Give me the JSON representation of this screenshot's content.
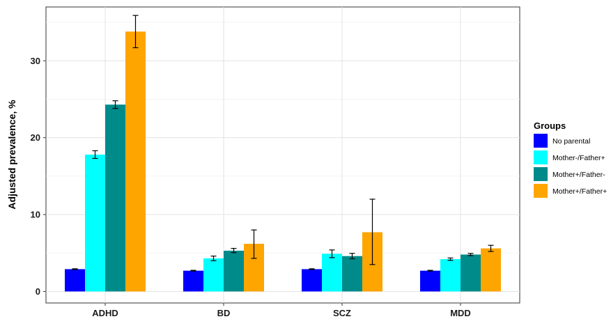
{
  "chart_data": {
    "type": "bar",
    "title": "",
    "xlabel": "",
    "ylabel": "Adjusted prevalence, %",
    "ylim": [
      -1.5,
      37
    ],
    "yticks": [
      0,
      10,
      20,
      30
    ],
    "grid": true,
    "legend_title": "Groups",
    "legend_position": "right",
    "categories": [
      "ADHD",
      "BD",
      "SCZ",
      "MDD"
    ],
    "series": [
      {
        "name": "No parental",
        "color": "#0000ff",
        "values": [
          2.9,
          2.7,
          2.9,
          2.7
        ],
        "err_low": [
          2.85,
          2.65,
          2.85,
          2.65
        ],
        "err_high": [
          2.95,
          2.75,
          2.95,
          2.75
        ]
      },
      {
        "name": "Mother-/Father+",
        "color": "#00ffff",
        "values": [
          17.8,
          4.3,
          4.9,
          4.2
        ],
        "err_low": [
          17.3,
          4.0,
          4.4,
          4.05
        ],
        "err_high": [
          18.3,
          4.6,
          5.4,
          4.35
        ]
      },
      {
        "name": "Mother+/Father-",
        "color": "#008b8b",
        "values": [
          24.3,
          5.3,
          4.6,
          4.8
        ],
        "err_low": [
          23.8,
          5.05,
          4.25,
          4.65
        ],
        "err_high": [
          24.8,
          5.6,
          4.95,
          4.95
        ]
      },
      {
        "name": "Mother+/Father+",
        "color": "#ffa500",
        "values": [
          33.8,
          6.2,
          7.7,
          5.6
        ],
        "err_low": [
          31.7,
          4.3,
          3.5,
          5.2
        ],
        "err_high": [
          35.9,
          8.0,
          12.0,
          6.0
        ]
      }
    ]
  }
}
